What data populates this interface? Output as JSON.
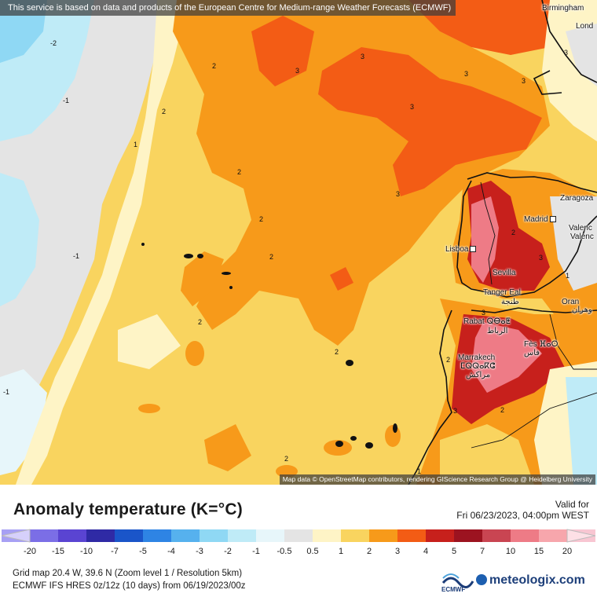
{
  "notice": "This service is based on data and products of the European Centre for Medium-range Weather Forecasts (ECMWF)",
  "map_credit": "Map data © OpenStreetMap contributors, rendering GIScience Research Group @ Heidelberg University",
  "cities": {
    "birmingham": "Birmingham",
    "london": "Lond",
    "zaragoza": "Zaragoza",
    "madrid": "Madrid",
    "valencia1": "Valenc",
    "valencia2": "Valenc",
    "lisboa": "Lisboa",
    "sevilla": "Sevilla",
    "tanger": "Tanger Eal",
    "tanger_ar": "طنجة",
    "oran": "Oran",
    "oran_ar": "وهران",
    "rabat": "Rabat ⵕⴱⴰⵟ",
    "rabat_ar": "الرباط",
    "fes": "Fès ⴼⴰⵙ",
    "fes_ar": "فاس",
    "marrakech": "Marrakech",
    "marrakech_tif": "ⵎⵕⵕⴰⴽⵛ",
    "marrakech_ar": "مراكش"
  },
  "contour_labels": {
    "l1": "-2",
    "l2": "-1",
    "l3": "-1",
    "l4": "-1",
    "l5": "1",
    "l6": "2",
    "l7": "2",
    "l8": "3",
    "l9": "3",
    "l10": "3",
    "l11": "3",
    "l12": "3",
    "l13": "2",
    "l14": "2",
    "l15": "2",
    "l16": "2",
    "l17": "2",
    "l18": "2",
    "l19": "3",
    "l20": "2",
    "l21": "3",
    "l22": "2",
    "l23": "3",
    "l24": "1",
    "l25": "2",
    "l26": "3",
    "l27": "3",
    "l28": "1"
  },
  "legend": {
    "title": "Anomaly temperature (K=°C)",
    "valid_label": "Valid for",
    "valid_time": "Fri 06/23/2023, 04:00pm WEST",
    "ticks": [
      "-20",
      "-15",
      "-10",
      "-7",
      "-5",
      "-4",
      "-3",
      "-2",
      "-1",
      "-0.5",
      "0.5",
      "1",
      "2",
      "3",
      "4",
      "5",
      "7",
      "10",
      "15",
      "20"
    ],
    "colors": [
      "#a7a0f4",
      "#7b6ee6",
      "#5a44d2",
      "#2f2aa5",
      "#1a55c9",
      "#2e84e4",
      "#56b1ee",
      "#8fd8f4",
      "#bfebf7",
      "#e7f6fa",
      "#e4e4e4",
      "#fef4c6",
      "#f9d45f",
      "#f79a1a",
      "#f35c15",
      "#c7201c",
      "#9c1320",
      "#c94552",
      "#ee7b86",
      "#f7a6ac",
      "#f8c6d2"
    ],
    "low_end_color": "#d6d0fb",
    "high_end_color": "#fde0e6"
  },
  "info": {
    "grid": "Grid map 20.4 W, 39.6 N (Zoom level 1 / Resolution 5km)",
    "model": "ECMWF IFS HRES 0z/12z (10 days)  from  06/19/2023/00z"
  },
  "logos": {
    "ecmwf": "ECMWF",
    "meteologix": "meteologix.com"
  }
}
